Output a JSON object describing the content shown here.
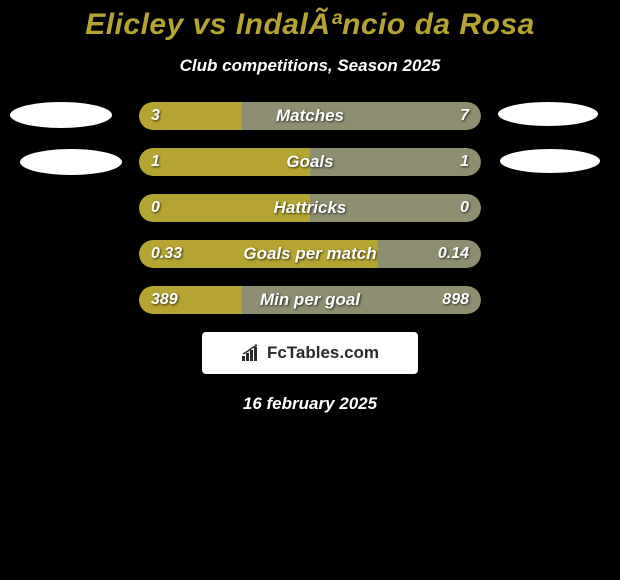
{
  "title": "Elicley vs IndalÃªncio da Rosa",
  "subtitle": "Club competitions, Season 2025",
  "date": "16 february 2025",
  "logo_text": "FcTables.com",
  "colors": {
    "background": "#000000",
    "accent": "#b4a431",
    "bar_track": "#8d8f70",
    "bar_fill": "#b4a431",
    "text": "#ffffff"
  },
  "stats": [
    {
      "label": "Matches",
      "left_value": "3",
      "right_value": "7",
      "left_pct": 30,
      "right_pct": 70,
      "dominant": "left"
    },
    {
      "label": "Goals",
      "left_value": "1",
      "right_value": "1",
      "left_pct": 50,
      "right_pct": 50,
      "dominant": "left"
    },
    {
      "label": "Hattricks",
      "left_value": "0",
      "right_value": "0",
      "left_pct": 50,
      "right_pct": 50,
      "dominant": "left"
    },
    {
      "label": "Goals per match",
      "left_value": "0.33",
      "right_value": "0.14",
      "left_pct": 70,
      "right_pct": 30,
      "dominant": "left"
    },
    {
      "label": "Min per goal",
      "left_value": "389",
      "right_value": "898",
      "left_pct": 30,
      "right_pct": 70,
      "dominant": "left"
    }
  ]
}
